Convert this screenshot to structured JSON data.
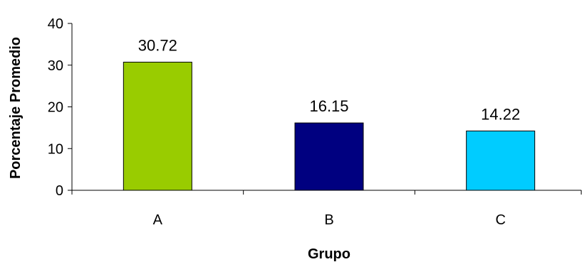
{
  "chart_data": {
    "type": "bar",
    "categories": [
      "A",
      "B",
      "C"
    ],
    "values": [
      30.72,
      16.15,
      14.22
    ],
    "data_labels": [
      "30.72",
      "16.15",
      "14.22"
    ],
    "colors": [
      "#99CC00",
      "#000080",
      "#00CCFF"
    ],
    "xlabel": "Grupo",
    "ylabel": "Porcentaje Promedio",
    "ylim": [
      0,
      40
    ],
    "yticks": [
      0,
      10,
      20,
      30,
      40
    ],
    "grid": false,
    "legend": "none"
  }
}
